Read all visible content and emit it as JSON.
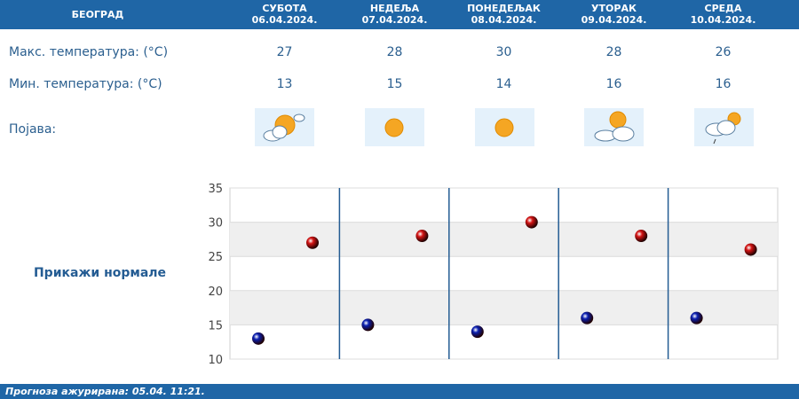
{
  "header": {
    "city": "БЕОГРАД",
    "days": [
      {
        "name": "СУБОТА",
        "date": "06.04.2024."
      },
      {
        "name": "НЕДЕЉА",
        "date": "07.04.2024."
      },
      {
        "name": "ПОНЕДЕЉАК",
        "date": "08.04.2024."
      },
      {
        "name": "УТОРАК",
        "date": "09.04.2024."
      },
      {
        "name": "СРЕДА",
        "date": "10.04.2024."
      }
    ]
  },
  "rows": {
    "max_label": "Макс. температура: (°C)",
    "min_label": "Мин. температура: (°C)",
    "phenomenon_label": "Појава:",
    "max": [
      "27",
      "28",
      "30",
      "28",
      "26"
    ],
    "min": [
      "13",
      "15",
      "14",
      "16",
      "16"
    ],
    "icons": [
      "sun-with-clouds-icon",
      "sun-icon",
      "sun-icon",
      "partly-cloudy-icon",
      "cloudy-light-rain-icon"
    ]
  },
  "norm_link": "Прикажи нормале",
  "footer": "Прогноза ажурирана:  05.04. 11:21.",
  "chart_data": {
    "type": "scatter",
    "ylim": [
      10,
      35
    ],
    "yticks": [
      "35",
      "30",
      "25",
      "20",
      "15",
      "10"
    ],
    "series": [
      {
        "values": [
          13,
          15,
          14,
          16,
          16
        ],
        "color": "#0a1fb0"
      },
      {
        "values": [
          27,
          28,
          30,
          28,
          26
        ],
        "color": "#d41414"
      }
    ]
  }
}
